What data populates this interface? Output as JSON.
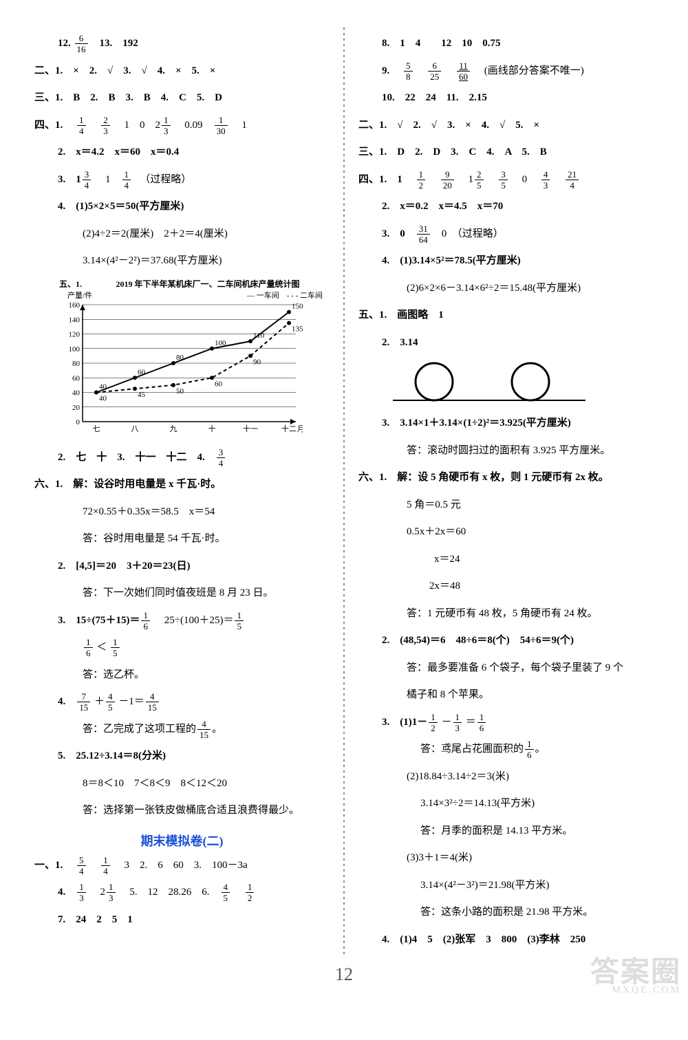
{
  "left": {
    "l1_pre": "12. ",
    "l1_frac": {
      "n": "6",
      "d": "16"
    },
    "l1_post": "　13.　192",
    "l2": "二、1.　×　2.　√　3.　√　4.　×　5.　×",
    "l3": "三、1.　B　2.　B　3.　B　4.　C　5.　D",
    "l4_a": "四、1.　",
    "l4_f1": {
      "n": "1",
      "d": "4"
    },
    "l4_f2": {
      "n": "2",
      "d": "3"
    },
    "l4_b": "　1　0　2",
    "l4_f3": {
      "n": "1",
      "d": "3"
    },
    "l4_c": "　0.09　",
    "l4_f4": {
      "n": "1",
      "d": "30"
    },
    "l4_d": "　1",
    "l5": "2.　x＝4.2　x＝60　x＝0.4",
    "l6_a": "3.　1",
    "l6_f1": {
      "n": "3",
      "d": "4"
    },
    "l6_b": "　1　",
    "l6_f2": {
      "n": "1",
      "d": "4"
    },
    "l6_c": "　（过程略）",
    "l7": "4.　(1)5×2×5＝50(平方厘米)",
    "l8": "(2)4÷2＝2(厘米)　2＋2＝4(厘米)",
    "l9": "3.14×(4²－2²)＝37.68(平方厘米)",
    "chart": {
      "title_prefix": "五、1.　",
      "title": "2019 年下半年某机床厂一、二车间机床产量统计图",
      "ylabel": "产量/件",
      "legend1": "一车间",
      "legend2": "二车间",
      "xlabels": [
        "七",
        "八",
        "九",
        "十",
        "十一",
        "十二"
      ],
      "xaxis_label": "月份",
      "yticks": [
        0,
        20,
        40,
        60,
        80,
        100,
        120,
        140,
        160
      ],
      "series1": [
        40,
        60,
        80,
        100,
        110,
        150
      ],
      "series2": [
        40,
        45,
        50,
        60,
        90,
        135
      ],
      "point_labels1": [
        "40",
        "60",
        "80",
        "100",
        "110",
        "150"
      ],
      "point_labels2": [
        "40",
        "45",
        "50",
        "60",
        "90",
        "135"
      ]
    },
    "l10_a": "2.　七　十　3.　十一　十二　4.　",
    "l10_f": {
      "n": "3",
      "d": "4"
    },
    "l11": "六、1.　解：设谷时用电量是 x 千瓦·时。",
    "l12": "72×0.55＋0.35x＝58.5　x＝54",
    "l13": "答：谷时用电量是 54 千瓦·时。",
    "l14": "2.　[4,5]＝20　3＋20＝23(日)",
    "l15": "答：下一次她们同时值夜班是 8 月 23 日。",
    "l16_a": "3.　15÷(75＋15)＝",
    "l16_f1": {
      "n": "1",
      "d": "6"
    },
    "l16_b": "　25÷(100＋25)＝",
    "l16_f2": {
      "n": "1",
      "d": "5"
    },
    "l17_f1": {
      "n": "1",
      "d": "6"
    },
    "l17_mid": "＜",
    "l17_f2": {
      "n": "1",
      "d": "5"
    },
    "l18": "答：选乙杯。",
    "l19_a": "4.　",
    "l19_f1": {
      "n": "7",
      "d": "15"
    },
    "l19_b": "＋",
    "l19_f2": {
      "n": "4",
      "d": "5"
    },
    "l19_c": "－1＝",
    "l19_f3": {
      "n": "4",
      "d": "15"
    },
    "l20_a": "答：乙完成了这项工程的",
    "l20_f": {
      "n": "4",
      "d": "15"
    },
    "l20_b": "。",
    "l21": "5.　25.12÷3.14＝8(分米)",
    "l22": "8＝8＜10　7＜8＜9　8＜12＜20",
    "l23": "答：选择第一张铁皮做桶底合适且浪费得最少。",
    "title2": "期末模拟卷(二)",
    "l24_a": "一、1.　",
    "l24_f1": {
      "n": "5",
      "d": "4"
    },
    "l24_f2": {
      "n": "1",
      "d": "4"
    },
    "l24_b": "　3　2.　6　60　3.　100－3a",
    "l25_a": "4.　",
    "l25_f1": {
      "n": "1",
      "d": "3"
    },
    "l25_b": "　2",
    "l25_f2": {
      "n": "1",
      "d": "3"
    },
    "l25_c": "　5.　12　28.26　6.　",
    "l25_f3": {
      "n": "4",
      "d": "5"
    },
    "l25_f4": {
      "n": "1",
      "d": "2"
    },
    "l26": "7.　24　2　5　1"
  },
  "right": {
    "r1": "8.　1　4　　12　10　0.75",
    "r2_a": "9.　",
    "r2_f1": {
      "n": "5",
      "d": "8"
    },
    "r2_f2": {
      "n": "6",
      "d": "25"
    },
    "r2_f3": {
      "n": "11",
      "d": "60"
    },
    "r2_b": "　(画线部分答案不唯一)",
    "r3": "10.　22　24　11.　2.15",
    "r4": "二、1.　√　2.　√　3.　×　4.　√　5.　×",
    "r5": "三、1.　D　2.　D　3.　C　4.　A　5.　B",
    "r6_a": "四、1.　1　",
    "r6_f1": {
      "n": "1",
      "d": "2"
    },
    "r6_f2": {
      "n": "9",
      "d": "20"
    },
    "r6_b": "　1",
    "r6_f3": {
      "n": "2",
      "d": "5"
    },
    "r6_f4": {
      "n": "3",
      "d": "5"
    },
    "r6_c": "　0　",
    "r6_f5": {
      "n": "4",
      "d": "3"
    },
    "r6_f6": {
      "n": "21",
      "d": "4"
    },
    "r7": "2.　x＝0.2　x＝4.5　x＝70",
    "r8_a": "3.　0　",
    "r8_f": {
      "n": "31",
      "d": "64"
    },
    "r8_b": "　0　（过程略）",
    "r9": "4.　(1)3.14×5²＝78.5(平方厘米)",
    "r10": "(2)6×2×6－3.14×6²÷2＝15.48(平方厘米)",
    "r11": "五、1.　画图略　1",
    "r12": "2.　3.14",
    "r13": "3.　3.14×1＋3.14×(1÷2)²＝3.925(平方厘米)",
    "r14": "答：滚动时圆扫过的面积有 3.925 平方厘米。",
    "r15": "六、1.　解：设 5 角硬币有 x 枚，则 1 元硬币有 2x 枚。",
    "r16": "5 角＝0.5 元",
    "r17": "0.5x＋2x＝60",
    "r18": "x＝24",
    "r19": "2x＝48",
    "r20": "答：1 元硬币有 48 枚，5 角硬币有 24 枚。",
    "r21": "2.　(48,54)＝6　48÷6＝8(个)　54÷6＝9(个)",
    "r22": "答：最多要准备 6 个袋子，每个袋子里装了 9 个",
    "r23": "橘子和 8 个苹果。",
    "r24_a": "3.　(1)1－",
    "r24_f1": {
      "n": "1",
      "d": "2"
    },
    "r24_b": "－",
    "r24_f2": {
      "n": "1",
      "d": "3"
    },
    "r24_c": "＝",
    "r24_f3": {
      "n": "1",
      "d": "6"
    },
    "r25_a": "答：鸢尾占花圃面积的",
    "r25_f": {
      "n": "1",
      "d": "6"
    },
    "r25_b": "。",
    "r26": "(2)18.84÷3.14÷2＝3(米)",
    "r27": "3.14×3²÷2＝14.13(平方米)",
    "r28": "答：月季的面积是 14.13 平方米。",
    "r29": "(3)3＋1＝4(米)",
    "r30": "3.14×(4²－3²)＝21.98(平方米)",
    "r31": "答：这条小路的面积是 21.98 平方米。",
    "r32": "4.　(1)4　5　(2)张军　3　800　(3)李林　250"
  },
  "footer": {
    "pagenum": "12",
    "wm1": "答案圈",
    "wm2": "MXQE.COM"
  }
}
